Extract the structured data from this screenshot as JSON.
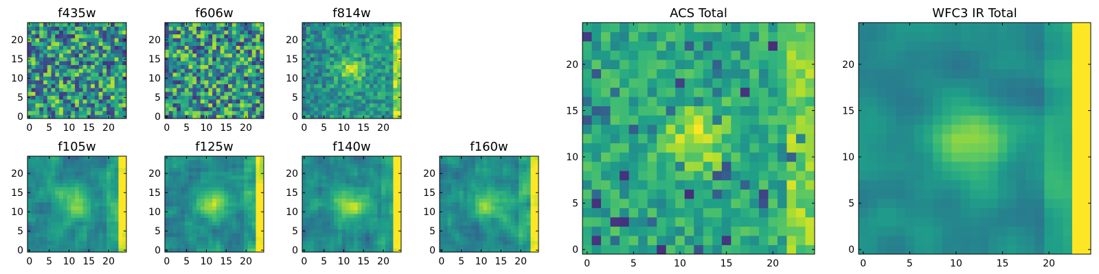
{
  "chart_data": {
    "type": "heatmap",
    "colormap": "viridis",
    "grid_size": [
      25,
      25
    ],
    "value_range": [
      0,
      1
    ],
    "panels": [
      {
        "title": "f435w",
        "xticks": [
          "0",
          "5",
          "10",
          "15",
          "20"
        ],
        "yticks": [
          "0",
          "5",
          "10",
          "15",
          "20"
        ],
        "xlim": [
          -0.5,
          24.5
        ],
        "ylim": [
          -0.5,
          24.5
        ],
        "pattern": "noise",
        "seed": 11
      },
      {
        "title": "f606w",
        "xticks": [
          "0",
          "5",
          "10",
          "15",
          "20"
        ],
        "yticks": [
          "0",
          "5",
          "10",
          "15",
          "20"
        ],
        "xlim": [
          -0.5,
          24.5
        ],
        "ylim": [
          -0.5,
          24.5
        ],
        "pattern": "noise",
        "seed": 23
      },
      {
        "title": "f814w",
        "xticks": [
          "0",
          "5",
          "10",
          "15",
          "20"
        ],
        "yticks": [
          "0",
          "5",
          "10",
          "15",
          "20"
        ],
        "xlim": [
          -0.5,
          24.5
        ],
        "ylim": [
          -0.5,
          24.5
        ],
        "pattern": "faint-source",
        "seed": 37
      },
      {
        "title": "f105w",
        "xticks": [
          "0",
          "5",
          "10",
          "15",
          "20"
        ],
        "yticks": [
          "0",
          "5",
          "10",
          "15",
          "20"
        ],
        "xlim": [
          -0.5,
          24.5
        ],
        "ylim": [
          -0.5,
          24.5
        ],
        "pattern": "ir-source",
        "seed": 41
      },
      {
        "title": "f125w",
        "xticks": [
          "0",
          "5",
          "10",
          "15",
          "20"
        ],
        "yticks": [
          "0",
          "5",
          "10",
          "15",
          "20"
        ],
        "xlim": [
          -0.5,
          24.5
        ],
        "ylim": [
          -0.5,
          24.5
        ],
        "pattern": "ir-source",
        "seed": 53
      },
      {
        "title": "f140w",
        "xticks": [
          "0",
          "5",
          "10",
          "15",
          "20"
        ],
        "yticks": [
          "0",
          "5",
          "10",
          "15",
          "20"
        ],
        "xlim": [
          -0.5,
          24.5
        ],
        "ylim": [
          -0.5,
          24.5
        ],
        "pattern": "ir-source",
        "seed": 67
      },
      {
        "title": "f160w",
        "xticks": [
          "0",
          "5",
          "10",
          "15",
          "20"
        ],
        "yticks": [
          "0",
          "5",
          "10",
          "15",
          "20"
        ],
        "xlim": [
          -0.5,
          24.5
        ],
        "ylim": [
          -0.5,
          24.5
        ],
        "pattern": "ir-source",
        "seed": 79
      },
      {
        "title": "ACS Total",
        "xticks": [
          "0",
          "5",
          "10",
          "15",
          "20"
        ],
        "yticks": [
          "0",
          "5",
          "10",
          "15",
          "20"
        ],
        "xlim": [
          -0.5,
          24.5
        ],
        "ylim": [
          -0.5,
          24.5
        ],
        "pattern": "acs-total",
        "seed": 83
      },
      {
        "title": "WFC3 IR Total",
        "xticks": [
          "0",
          "5",
          "10",
          "15",
          "20"
        ],
        "yticks": [
          "0",
          "5",
          "10",
          "15",
          "20"
        ],
        "xlim": [
          -0.5,
          24.5
        ],
        "ylim": [
          -0.5,
          24.5
        ],
        "pattern": "ir-total",
        "seed": 97
      }
    ],
    "source_center": [
      12,
      12
    ],
    "xlabel": "",
    "ylabel": ""
  }
}
